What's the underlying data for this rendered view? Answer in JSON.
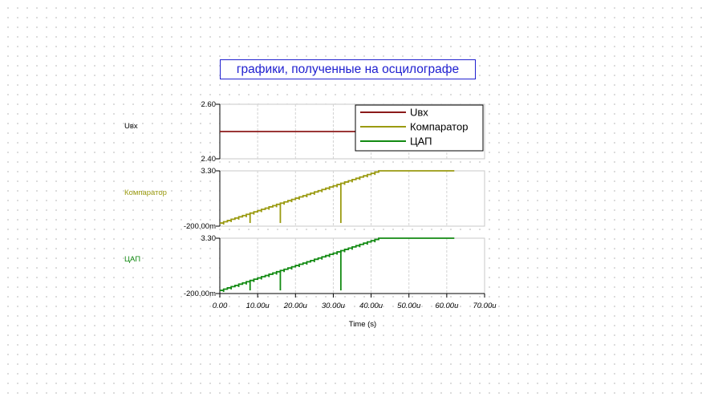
{
  "title": "графики, полученные на осцилографе",
  "chart_data": {
    "type": "line",
    "xlabel": "Time (s)",
    "x_range": [
      0,
      70
    ],
    "x_ticks": [
      "0.00",
      "10.00u",
      "20.00u",
      "30.00u",
      "40.00u",
      "50.00u",
      "60.00u",
      "70.00u"
    ],
    "legend_position": "top-right",
    "panels": [
      {
        "label": "Uвх",
        "color": "#8b1a1a",
        "ylim": [
          2.4,
          2.6
        ],
        "y_ticks": [
          "2.60",
          "2.40"
        ],
        "series": {
          "name": "Uвх",
          "kind": "constant",
          "x_end": 62,
          "value": 2.5
        }
      },
      {
        "label": "Компаратор",
        "color": "#9a9a10",
        "ylim": [
          -0.2,
          3.3
        ],
        "y_ticks": [
          "3.30",
          "-200.00m"
        ],
        "series": {
          "name": "Компаратор",
          "kind": "staircase",
          "x_start": 0,
          "x_ramp_end": 42,
          "x_end": 62,
          "y_start": 0,
          "y_end": 3.3,
          "steps": 42,
          "glitch_depth": 0.1,
          "spikes": [
            {
              "x": 8,
              "y": 0
            },
            {
              "x": 16,
              "y": 0
            },
            {
              "x": 32,
              "y": 0
            }
          ]
        }
      },
      {
        "label": "ЦАП",
        "color": "#128a12",
        "ylim": [
          -0.2,
          3.3
        ],
        "y_ticks": [
          "3.30",
          "-200.00m"
        ],
        "series": {
          "name": "ЦАП",
          "kind": "staircase",
          "x_start": 0,
          "x_ramp_end": 42,
          "x_end": 62,
          "y_start": 0,
          "y_end": 3.3,
          "steps": 42,
          "glitch_depth": 0.1,
          "spikes": [
            {
              "x": 8,
              "y": 0
            },
            {
              "x": 16,
              "y": 0
            },
            {
              "x": 32,
              "y": 0
            }
          ]
        }
      }
    ],
    "legend": [
      {
        "name": "Uвх",
        "color": "#8b1a1a"
      },
      {
        "name": "Компаратор",
        "color": "#9a9a10"
      },
      {
        "name": "ЦАП",
        "color": "#128a12"
      }
    ]
  }
}
